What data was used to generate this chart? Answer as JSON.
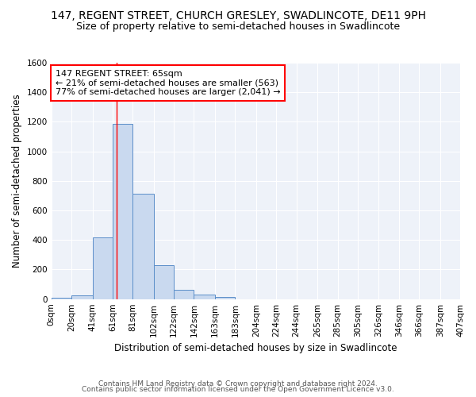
{
  "title": "147, REGENT STREET, CHURCH GRESLEY, SWADLINCOTE, DE11 9PH",
  "subtitle": "Size of property relative to semi-detached houses in Swadlincote",
  "xlabel": "Distribution of semi-detached houses by size in Swadlincote",
  "ylabel": "Number of semi-detached properties",
  "footer_line1": "Contains HM Land Registry data © Crown copyright and database right 2024.",
  "footer_line2": "Contains public sector information licensed under the Open Government Licence v3.0.",
  "bin_edges": [
    0,
    20,
    41,
    61,
    81,
    102,
    122,
    142,
    163,
    183,
    204,
    224,
    244,
    265,
    285,
    305,
    326,
    346,
    366,
    387,
    407
  ],
  "bin_labels": [
    "0sqm",
    "20sqm",
    "41sqm",
    "61sqm",
    "81sqm",
    "102sqm",
    "122sqm",
    "142sqm",
    "163sqm",
    "183sqm",
    "204sqm",
    "224sqm",
    "244sqm",
    "265sqm",
    "285sqm",
    "305sqm",
    "326sqm",
    "346sqm",
    "366sqm",
    "387sqm",
    "407sqm"
  ],
  "counts": [
    10,
    25,
    420,
    1185,
    715,
    230,
    65,
    28,
    12,
    0,
    0,
    0,
    0,
    0,
    0,
    0,
    0,
    0,
    0,
    0
  ],
  "bar_facecolor": "#c9d9ef",
  "bar_edgecolor": "#5b8ec9",
  "property_line_x": 65,
  "property_line_color": "red",
  "annotation_line1": "147 REGENT STREET: 65sqm",
  "annotation_line2": "← 21% of semi-detached houses are smaller (563)",
  "annotation_line3": "77% of semi-detached houses are larger (2,041) →",
  "ylim": [
    0,
    1600
  ],
  "yticks": [
    0,
    200,
    400,
    600,
    800,
    1000,
    1200,
    1400,
    1600
  ],
  "bg_color": "#eef2f9",
  "grid_color": "#ffffff",
  "title_fontsize": 10,
  "subtitle_fontsize": 9,
  "axis_label_fontsize": 8.5,
  "tick_fontsize": 7.5,
  "annotation_fontsize": 8,
  "footer_fontsize": 6.5
}
